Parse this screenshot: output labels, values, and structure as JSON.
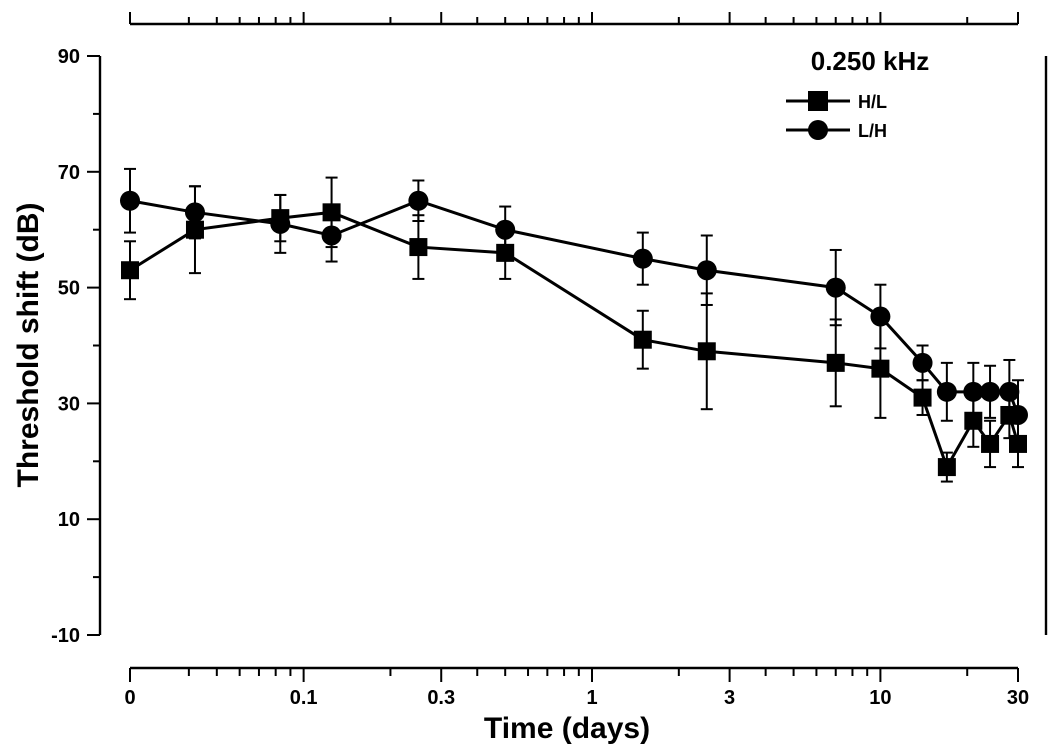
{
  "chart_data": {
    "type": "line",
    "title": "0.250 kHz",
    "xlabel": "Time (days)",
    "ylabel": "Threshold shift (dB)",
    "x_scale": "log (first point plotted at origin labelled 0)",
    "x_tick_labels": [
      "0",
      "0.1",
      "0.3",
      "1",
      "3",
      "10",
      "30"
    ],
    "y_tick_labels": [
      "90",
      "70",
      "50",
      "30",
      "10",
      "-10"
    ],
    "ylim": [
      -10,
      90
    ],
    "grid": false,
    "legend_position": "top-right",
    "series": [
      {
        "name": "H/L",
        "marker": "square",
        "points": [
          {
            "x": 0,
            "y": 53,
            "err": 5
          },
          {
            "x": 0.042,
            "y": 60,
            "err": 7.5
          },
          {
            "x": 0.083,
            "y": 62,
            "err": 4
          },
          {
            "x": 0.125,
            "y": 63,
            "err": 6
          },
          {
            "x": 0.25,
            "y": 57,
            "err": 5.5
          },
          {
            "x": 0.5,
            "y": 56,
            "err": 4.5
          },
          {
            "x": 1.5,
            "y": 41,
            "err": 5
          },
          {
            "x": 2.5,
            "y": 39,
            "err": 10
          },
          {
            "x": 7,
            "y": 37,
            "err": 7.5
          },
          {
            "x": 10,
            "y": 36,
            "err": 8.5
          },
          {
            "x": 14,
            "y": 31,
            "err": 3
          },
          {
            "x": 17,
            "y": 19,
            "err": 2.5
          },
          {
            "x": 21,
            "y": 27,
            "err": 4.5
          },
          {
            "x": 24,
            "y": 23,
            "err": 4
          },
          {
            "x": 28,
            "y": 28,
            "err": 4
          },
          {
            "x": 30,
            "y": 23,
            "err": 4
          }
        ]
      },
      {
        "name": "L/H",
        "marker": "circle",
        "points": [
          {
            "x": 0,
            "y": 65,
            "err": 5.5
          },
          {
            "x": 0.042,
            "y": 63,
            "err": 4.5
          },
          {
            "x": 0.083,
            "y": 61,
            "err": 5
          },
          {
            "x": 0.125,
            "y": 59,
            "err": 4.5
          },
          {
            "x": 0.25,
            "y": 65,
            "err": 3.5
          },
          {
            "x": 0.5,
            "y": 60,
            "err": 4
          },
          {
            "x": 1.5,
            "y": 55,
            "err": 4.5
          },
          {
            "x": 2.5,
            "y": 53,
            "err": 6
          },
          {
            "x": 7,
            "y": 50,
            "err": 6.5
          },
          {
            "x": 10,
            "y": 45,
            "err": 5.5
          },
          {
            "x": 14,
            "y": 37,
            "err": 3
          },
          {
            "x": 17,
            "y": 32,
            "err": 5
          },
          {
            "x": 21,
            "y": 32,
            "err": 5
          },
          {
            "x": 24,
            "y": 32,
            "err": 4.5
          },
          {
            "x": 28,
            "y": 32,
            "err": 5.5
          },
          {
            "x": 30,
            "y": 28,
            "err": 6
          }
        ]
      }
    ]
  }
}
